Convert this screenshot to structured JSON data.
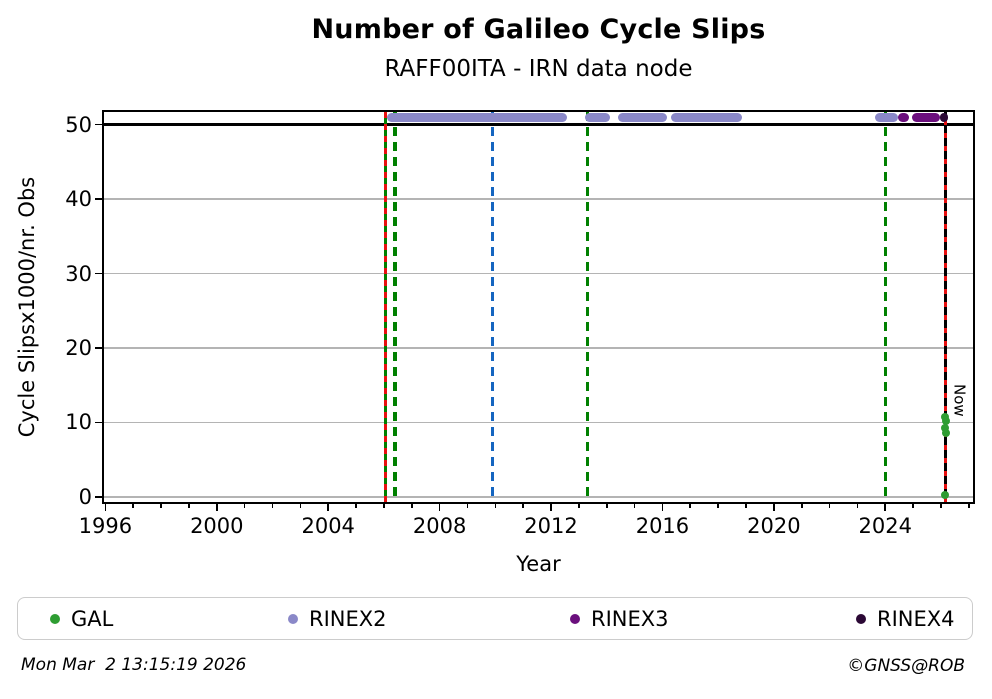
{
  "header": {
    "title": "Number of Galileo Cycle Slips",
    "subtitle": "RAFF00ITA - IRN data node"
  },
  "footer": {
    "timestamp": "Mon Mar  2 13:15:19 2026",
    "credit": "©GNSS@ROB"
  },
  "legend": {
    "items": [
      {
        "label": "GAL",
        "color": "#2e9d32"
      },
      {
        "label": "RINEX2",
        "color": "#8a88c8"
      },
      {
        "label": "RINEX3",
        "color": "#6b0f7d"
      },
      {
        "label": "RINEX4",
        "color": "#2b0835"
      }
    ]
  },
  "chart_data": {
    "type": "scatter",
    "title": "Number of Galileo Cycle Slips",
    "subtitle": "RAFF00ITA - IRN data node",
    "xlabel": "Year",
    "ylabel": "Cycle Slipsx1000/nr. Obs",
    "xlim": [
      1995.95,
      2027.15
    ],
    "ylim": [
      -0.7,
      51.7
    ],
    "xticks_major": [
      1996,
      2000,
      2004,
      2008,
      2012,
      2016,
      2020,
      2024
    ],
    "xticks_minor_step": 1,
    "yticks": [
      0,
      10,
      20,
      30,
      40,
      50
    ],
    "grid": true,
    "grid_color": "#b4b4b4",
    "threshold_line": {
      "y": 50,
      "color": "#000000"
    },
    "now_label": "Now",
    "series": [
      {
        "name": "GAL",
        "color": "#2e9d32",
        "marker": "circle",
        "points": [
          [
            2026.15,
            10.7
          ],
          [
            2026.17,
            10.2
          ],
          [
            2026.16,
            9.2
          ],
          [
            2026.18,
            8.6
          ],
          [
            2026.16,
            0.3
          ]
        ]
      },
      {
        "name": "RINEX2",
        "color": "#8a88c8",
        "band_y": 51,
        "segments": [
          [
            2006.12,
            2012.57
          ],
          [
            2013.22,
            2014.11
          ],
          [
            2014.4,
            2016.15
          ],
          [
            2016.3,
            2018.85
          ],
          [
            2023.63,
            2024.45
          ]
        ]
      },
      {
        "name": "RINEX3",
        "color": "#6b0f7d",
        "band_y": 51,
        "segments": [
          [
            2024.45,
            2024.85
          ],
          [
            2024.95,
            2025.98
          ]
        ]
      },
      {
        "name": "RINEX4",
        "color": "#2b0835",
        "band_y": 51,
        "segments": [
          [
            2025.98,
            2026.2
          ]
        ]
      }
    ],
    "event_lines": [
      {
        "year": 2006.07,
        "layers": [
          {
            "color": "#008000"
          },
          {
            "color": "#e81010",
            "dash": [
              6,
              6
            ]
          }
        ]
      },
      {
        "year": 2006.4,
        "layers": [
          {
            "color": "#008000",
            "dash": [
              9,
              6
            ]
          }
        ]
      },
      {
        "year": 2009.9,
        "layers": [
          {
            "color": "#1565c0",
            "dash": [
              9,
              6
            ]
          }
        ]
      },
      {
        "year": 2013.3,
        "layers": [
          {
            "color": "#008000",
            "dash": [
              9,
              6
            ]
          }
        ]
      },
      {
        "year": 2024.02,
        "layers": [
          {
            "color": "#008000",
            "dash": [
              9,
              6
            ]
          }
        ]
      },
      {
        "year": 2026.16,
        "label": "Now",
        "layers": [
          {
            "color": "#008000"
          },
          {
            "color": "#000000",
            "dash": [
              8,
              5
            ]
          },
          {
            "color": "#e81010",
            "dash": [
              5,
              8
            ],
            "offset": 8
          }
        ]
      }
    ]
  }
}
